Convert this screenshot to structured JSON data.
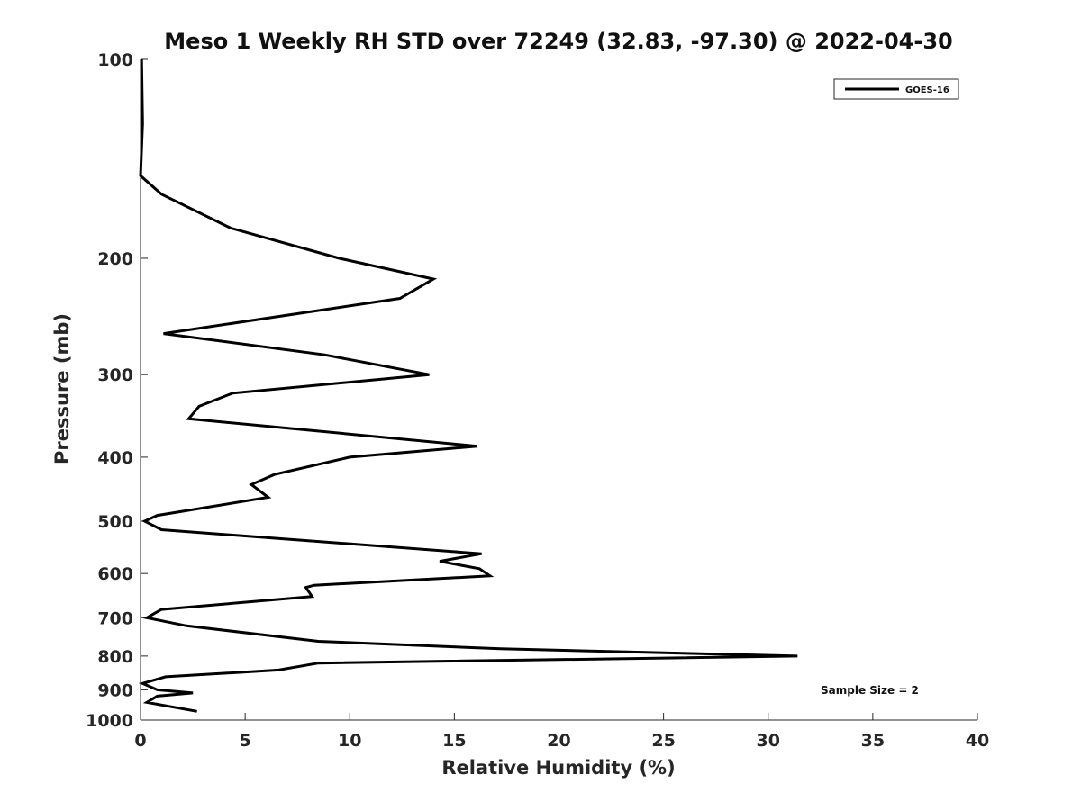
{
  "chart_data": {
    "type": "line",
    "title": "Meso 1 Weekly RH STD over 72249 (32.83, -97.30) @ 2022-04-30",
    "xlabel": "Relative Humidity (%)",
    "ylabel": "Pressure (mb)",
    "xlim": [
      0,
      40
    ],
    "ylim": [
      1000,
      100
    ],
    "yscale": "log",
    "grid": false,
    "legend_position": "top-right",
    "xticks": [
      "0",
      "5",
      "10",
      "15",
      "20",
      "25",
      "30",
      "35",
      "40"
    ],
    "yticks": [
      "100",
      "200",
      "300",
      "400",
      "500",
      "600",
      "700",
      "800",
      "900",
      "1000"
    ],
    "line_color": "#000000",
    "series": [
      {
        "name": "GOES-16",
        "x": [
          0.05,
          0.1,
          0.0,
          1.0,
          4.3,
          9.5,
          14.0,
          12.4,
          1.1,
          8.8,
          13.8,
          4.4,
          2.8,
          2.3,
          16.1,
          10.0,
          6.4,
          5.3,
          6.1,
          0.8,
          0.2,
          1.0,
          16.3,
          14.3,
          16.2,
          16.7,
          8.3,
          7.9,
          8.2,
          1.0,
          0.3,
          2.2,
          8.5,
          17.2,
          31.4,
          8.5,
          6.6,
          1.2,
          0.1,
          0.8,
          2.5,
          0.8,
          0.3,
          2.7
        ],
        "y": [
          100,
          125,
          150,
          160,
          180,
          200,
          215,
          230,
          260,
          280,
          300,
          320,
          335,
          350,
          385,
          400,
          425,
          440,
          460,
          490,
          500,
          515,
          560,
          575,
          590,
          605,
          625,
          630,
          650,
          680,
          700,
          720,
          760,
          780,
          800,
          820,
          840,
          860,
          880,
          900,
          910,
          920,
          940,
          970
        ]
      }
    ],
    "annotations": [
      "Sample Size = 2"
    ]
  }
}
